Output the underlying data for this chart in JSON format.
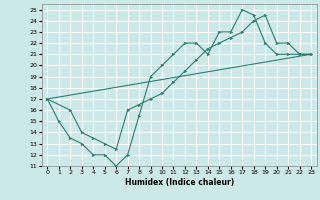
{
  "xlabel": "Humidex (Indice chaleur)",
  "xlim": [
    -0.5,
    23.5
  ],
  "ylim": [
    11,
    25.5
  ],
  "xticks": [
    0,
    1,
    2,
    3,
    4,
    5,
    6,
    7,
    8,
    9,
    10,
    11,
    12,
    13,
    14,
    15,
    16,
    17,
    18,
    19,
    20,
    21,
    22,
    23
  ],
  "yticks": [
    11,
    12,
    13,
    14,
    15,
    16,
    17,
    18,
    19,
    20,
    21,
    22,
    23,
    24,
    25
  ],
  "bg_color": "#cce8e8",
  "grid_color": "#ffffff",
  "line_color": "#2e7d6e",
  "lines": [
    {
      "x": [
        0,
        1,
        2,
        3,
        4,
        5,
        6,
        7,
        8,
        9,
        10,
        11,
        12,
        13,
        14,
        15,
        16,
        17,
        18,
        19,
        20,
        21,
        22,
        23
      ],
      "y": [
        17,
        15,
        13.5,
        13,
        12,
        12,
        11,
        12,
        15.5,
        19,
        20,
        21,
        22,
        22,
        21,
        23,
        23,
        25,
        24.5,
        22,
        21,
        21,
        21,
        21
      ],
      "marker": true
    },
    {
      "x": [
        0,
        2,
        3,
        4,
        5,
        6,
        7,
        8,
        9,
        10,
        11,
        12,
        13,
        14,
        15,
        16,
        17,
        18,
        19,
        20,
        21,
        22,
        23
      ],
      "y": [
        17,
        16,
        14,
        13.5,
        13,
        12.5,
        16,
        16.5,
        17,
        17.5,
        18.5,
        19.5,
        20.5,
        21.5,
        22,
        22.5,
        23,
        24,
        24.5,
        22,
        22,
        21,
        21
      ],
      "marker": true
    },
    {
      "x": [
        0,
        23
      ],
      "y": [
        17,
        21
      ],
      "marker": false
    }
  ]
}
